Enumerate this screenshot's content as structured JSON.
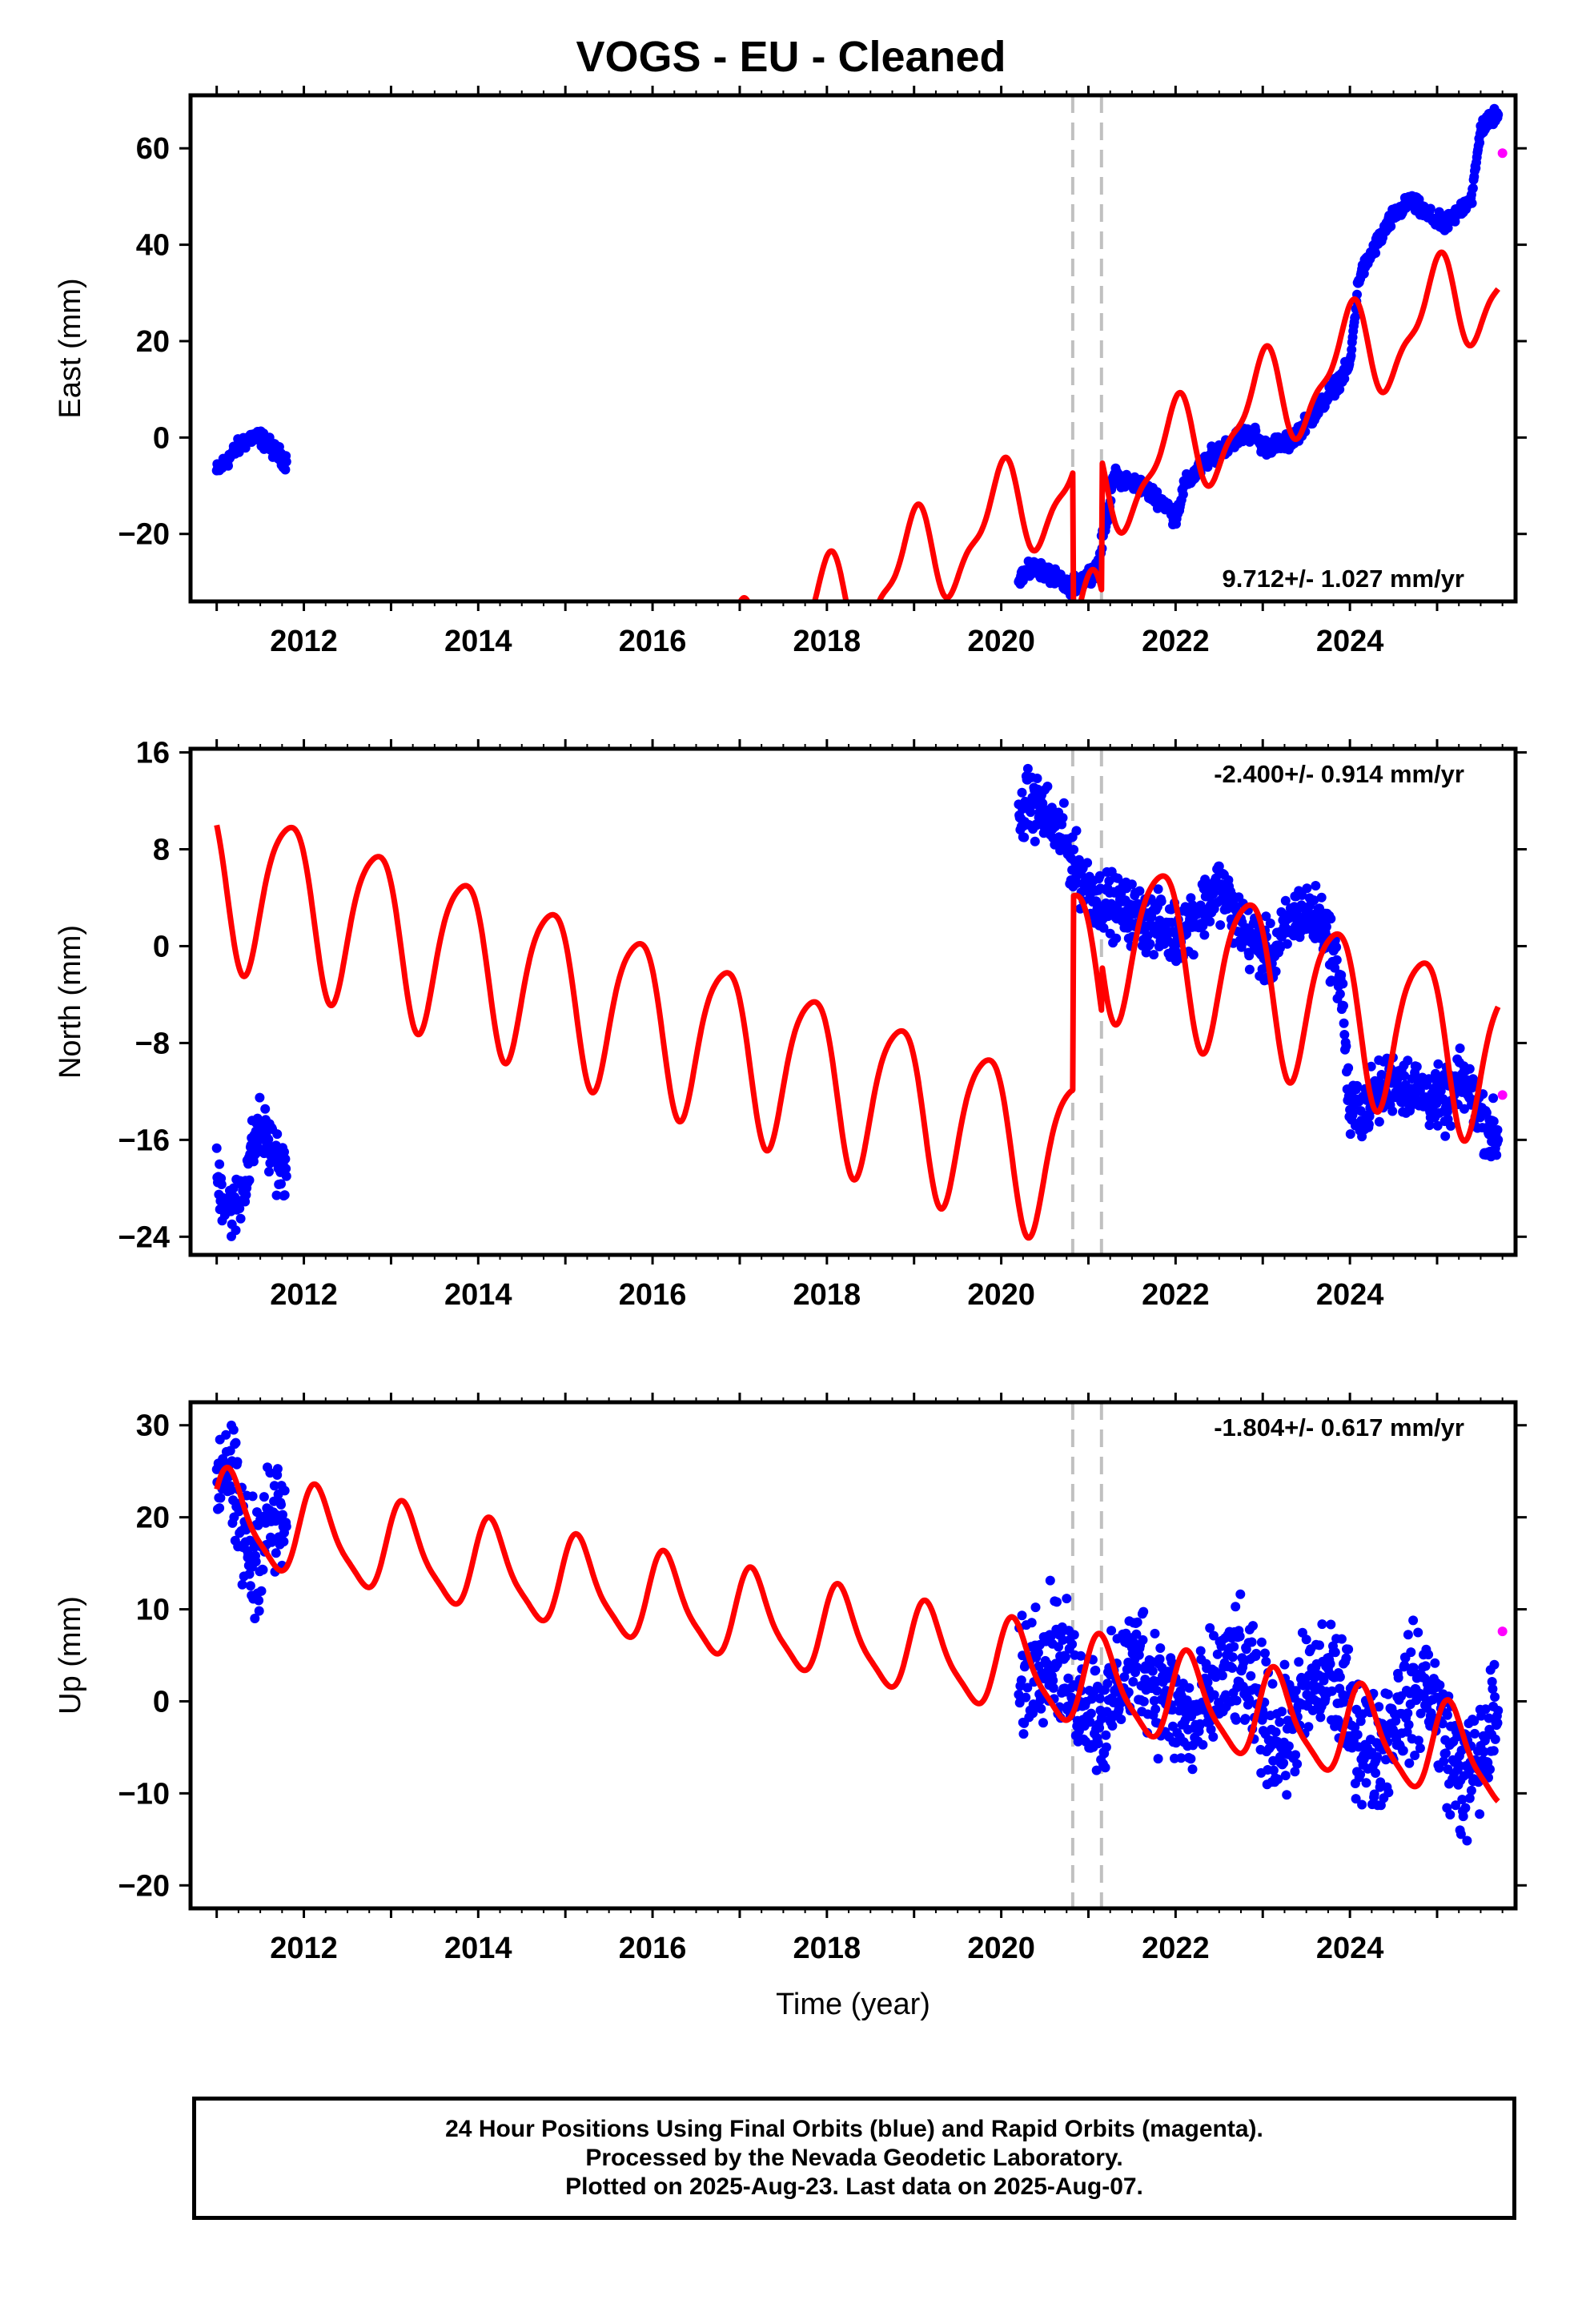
{
  "title": "VOGS  - EU - Cleaned",
  "colors": {
    "final": "#0000ff",
    "rapid": "#ff00ff",
    "model": "#ff0000",
    "steps": "#c0c0c0"
  },
  "chart_data": [
    {
      "type": "scatter",
      "component": "East",
      "ylabel": "East (mm)",
      "xlabel": "",
      "xlim": [
        2010.7,
        2025.9
      ],
      "ylim": [
        -34,
        71
      ],
      "yticks": [
        -20,
        0,
        20,
        40,
        60
      ],
      "yticklabels": [
        "−20",
        "0",
        "20",
        "40",
        "60"
      ],
      "xticks": [
        2012,
        2014,
        2016,
        2018,
        2020,
        2022,
        2024
      ],
      "xticklabels": [
        "2012",
        "2014",
        "2016",
        "2018",
        "2020",
        "2022",
        "2024"
      ],
      "rate": "9.712+/- 1.027 mm/yr",
      "rate_position": "bottom-right",
      "steps": [
        2020.82,
        2021.15
      ],
      "final_orbits": [
        [
          2011.0,
          -7
        ],
        [
          2011.1,
          -5
        ],
        [
          2011.2,
          -3
        ],
        [
          2011.3,
          -1
        ],
        [
          2011.4,
          0
        ],
        [
          2011.5,
          0
        ],
        [
          2011.8,
          -5
        ],
        [
          2020.2,
          -29
        ],
        [
          2020.4,
          -27
        ],
        [
          2020.6,
          -29
        ],
        [
          2020.75,
          -31
        ],
        [
          2020.9,
          -30
        ],
        [
          2021.1,
          -27
        ],
        [
          2021.3,
          -8
        ],
        [
          2021.6,
          -10
        ],
        [
          2021.9,
          -14
        ],
        [
          2022.0,
          -17
        ],
        [
          2022.1,
          -10
        ],
        [
          2022.4,
          -4
        ],
        [
          2022.7,
          0
        ],
        [
          2022.9,
          1
        ],
        [
          2023.0,
          -2
        ],
        [
          2023.3,
          -1
        ],
        [
          2023.6,
          5
        ],
        [
          2023.8,
          10
        ],
        [
          2024.0,
          15
        ],
        [
          2024.1,
          33
        ],
        [
          2024.3,
          40
        ],
        [
          2024.5,
          46
        ],
        [
          2024.7,
          49
        ],
        [
          2024.9,
          46
        ],
        [
          2025.1,
          44
        ],
        [
          2025.3,
          48
        ],
        [
          2025.4,
          50
        ],
        [
          2025.5,
          64
        ],
        [
          2025.6,
          66
        ],
        [
          2025.7,
          67
        ]
      ],
      "rapid_orbits": [
        [
          2025.75,
          59
        ]
      ],
      "model": {
        "intercept_2021": -13.0,
        "jump_2020_82": -33.0,
        "jump_2021_15": 27.0,
        "annual_cos": 9.5,
        "annual_sin": -1.0,
        "semiannual_cos": 2.0,
        "semiannual_sin": 3.0,
        "rate": 9.712,
        "range": [
          2011.0,
          2025.7
        ]
      }
    },
    {
      "type": "scatter",
      "component": "North",
      "ylabel": "North (mm)",
      "xlabel": "",
      "xlim": [
        2010.7,
        2025.9
      ],
      "ylim": [
        -25.5,
        16.3
      ],
      "yticks": [
        -24,
        -16,
        -8,
        0,
        8,
        16
      ],
      "yticklabels": [
        "−24",
        "−16",
        "−8",
        "0",
        "8",
        "16"
      ],
      "xticks": [
        2012,
        2014,
        2016,
        2018,
        2020,
        2022,
        2024
      ],
      "xticklabels": [
        "2012",
        "2014",
        "2016",
        "2018",
        "2020",
        "2022",
        "2024"
      ],
      "rate": "-2.400+/- 0.914 mm/yr",
      "rate_position": "top-right",
      "steps": [
        2020.82,
        2021.15
      ],
      "final_orbits": [
        [
          2011.0,
          -19
        ],
        [
          2011.1,
          -21
        ],
        [
          2011.2,
          -22
        ],
        [
          2011.3,
          -20
        ],
        [
          2011.4,
          -17
        ],
        [
          2011.5,
          -15
        ],
        [
          2011.8,
          -19
        ],
        [
          2020.2,
          10
        ],
        [
          2020.3,
          12
        ],
        [
          2020.5,
          11
        ],
        [
          2020.7,
          9
        ],
        [
          2020.9,
          6
        ],
        [
          2021.1,
          4
        ],
        [
          2021.4,
          3
        ],
        [
          2021.7,
          2
        ],
        [
          2022.0,
          1
        ],
        [
          2022.3,
          3
        ],
        [
          2022.5,
          5
        ],
        [
          2022.8,
          1
        ],
        [
          2023.1,
          -1
        ],
        [
          2023.4,
          3
        ],
        [
          2023.7,
          2
        ],
        [
          2023.9,
          -3
        ],
        [
          2024.0,
          -14
        ],
        [
          2024.2,
          -13
        ],
        [
          2024.5,
          -11
        ],
        [
          2024.8,
          -12
        ],
        [
          2025.1,
          -13
        ],
        [
          2025.3,
          -11
        ],
        [
          2025.5,
          -14
        ],
        [
          2025.7,
          -16
        ]
      ],
      "rapid_orbits": [
        [
          2025.75,
          -12.3
        ]
      ],
      "model": {
        "intercept_2021": 2.0,
        "jump_2020_82": 16.0,
        "jump_2021_15": 4.0,
        "annual_cos": 3.0,
        "annual_sin": -6.0,
        "semiannual_cos": 1.0,
        "semiannual_sin": 0.5,
        "rate": -2.4,
        "range": [
          2011.0,
          2025.7
        ]
      }
    },
    {
      "type": "scatter",
      "component": "Up",
      "ylabel": "Up (mm)",
      "xlabel": "Time (year)",
      "xlim": [
        2010.7,
        2025.9
      ],
      "ylim": [
        -22.5,
        32.5
      ],
      "yticks": [
        -20,
        -10,
        0,
        10,
        20,
        30
      ],
      "yticklabels": [
        "−20",
        "−10",
        "0",
        "10",
        "20",
        "30"
      ],
      "xticks": [
        2012,
        2014,
        2016,
        2018,
        2020,
        2022,
        2024
      ],
      "xticklabels": [
        "2012",
        "2014",
        "2016",
        "2018",
        "2020",
        "2022",
        "2024"
      ],
      "rate": "-1.804+/- 0.617 mm/yr",
      "rate_position": "top-right",
      "steps": [
        2020.82,
        2021.15
      ],
      "final_orbits": [
        [
          2011.0,
          24
        ],
        [
          2011.1,
          27
        ],
        [
          2011.2,
          22
        ],
        [
          2011.3,
          18
        ],
        [
          2011.4,
          15
        ],
        [
          2011.6,
          20
        ],
        [
          2011.8,
          19
        ],
        [
          2020.2,
          1
        ],
        [
          2020.4,
          5
        ],
        [
          2020.6,
          6
        ],
        [
          2020.8,
          2
        ],
        [
          2021.0,
          0
        ],
        [
          2021.2,
          -2
        ],
        [
          2021.4,
          3
        ],
        [
          2021.6,
          5
        ],
        [
          2021.9,
          0
        ],
        [
          2022.2,
          -3
        ],
        [
          2022.5,
          2
        ],
        [
          2022.7,
          4
        ],
        [
          2023.0,
          -1
        ],
        [
          2023.2,
          -5
        ],
        [
          2023.5,
          1
        ],
        [
          2023.8,
          3
        ],
        [
          2024.0,
          -2
        ],
        [
          2024.3,
          -6
        ],
        [
          2024.6,
          0
        ],
        [
          2024.9,
          2
        ],
        [
          2025.1,
          -4
        ],
        [
          2025.3,
          -9
        ],
        [
          2025.5,
          -6
        ],
        [
          2025.7,
          -1
        ]
      ],
      "rapid_orbits": [
        [
          2025.75,
          7.6
        ]
      ],
      "model": {
        "intercept_2021": 2.0,
        "jump_2020_82": 0.0,
        "jump_2021_15": 0.0,
        "annual_cos": 2.5,
        "annual_sin": 4.0,
        "semiannual_cos": 0.5,
        "semiannual_sin": 1.0,
        "rate": -1.804,
        "range": [
          2011.0,
          2025.7
        ]
      }
    }
  ],
  "footer": {
    "line1": "24 Hour Positions Using Final Orbits (blue) and Rapid Orbits (magenta).",
    "line2": "Processed by the Nevada Geodetic Laboratory.",
    "line3": "Plotted on 2025-Aug-23. Last data on 2025-Aug-07."
  }
}
